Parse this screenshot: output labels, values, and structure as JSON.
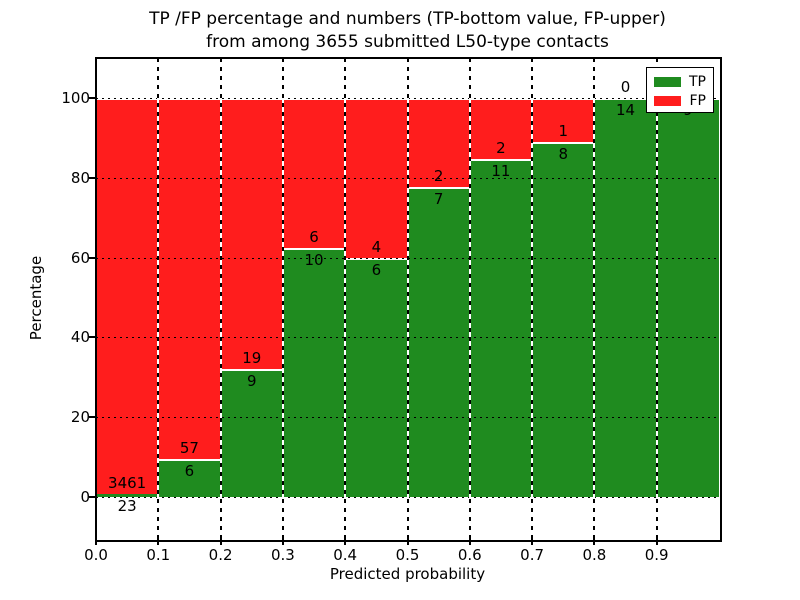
{
  "title": {
    "line1": "TP /FP percentage and numbers (TP-bottom value, FP-upper)",
    "line2": "from among 3655 submitted L50-type contacts"
  },
  "axes": {
    "xlabel": "Predicted probability",
    "ylabel": "Percentage",
    "xticks": [
      "0.0",
      "0.1",
      "0.2",
      "0.3",
      "0.4",
      "0.5",
      "0.6",
      "0.7",
      "0.8",
      "0.9"
    ],
    "yticks": [
      "0",
      "20",
      "40",
      "60",
      "80",
      "100"
    ]
  },
  "legend": {
    "items": [
      {
        "label": "TP",
        "color": "#1f8b1f"
      },
      {
        "label": "FP",
        "color": "#ff1d1d"
      }
    ]
  },
  "colors": {
    "tp": "#1f8b1f",
    "fp": "#ff1d1d",
    "grid": "#000000",
    "text": "#000000",
    "background": "#ffffff"
  },
  "chart_data": {
    "type": "bar",
    "stacked": true,
    "title": "TP /FP percentage and numbers (TP-bottom value, FP-upper) from among 3655 submitted L50-type contacts",
    "xlabel": "Predicted probability",
    "ylabel": "Percentage",
    "total_contacts": 3655,
    "bins": [
      "0.0-0.1",
      "0.1-0.2",
      "0.2-0.3",
      "0.3-0.4",
      "0.4-0.5",
      "0.5-0.6",
      "0.6-0.7",
      "0.7-0.8",
      "0.8-0.9",
      "0.9-1.0"
    ],
    "series": [
      {
        "name": "TP",
        "color": "#1f8b1f",
        "counts": [
          23,
          6,
          9,
          10,
          6,
          7,
          11,
          8,
          14,
          9
        ]
      },
      {
        "name": "FP",
        "color": "#ff1d1d",
        "counts": [
          3461,
          57,
          19,
          6,
          4,
          2,
          2,
          1,
          0,
          0
        ]
      }
    ],
    "tp_percent": [
      0.66,
      9.52,
      32.14,
      62.5,
      60.0,
      77.78,
      84.62,
      88.89,
      100.0,
      100.0
    ],
    "ylim": [
      -11,
      111
    ],
    "xlim": [
      0,
      1
    ],
    "yticks": [
      0,
      20,
      40,
      60,
      80,
      100
    ],
    "grid": true,
    "legend_position": "upper right"
  }
}
